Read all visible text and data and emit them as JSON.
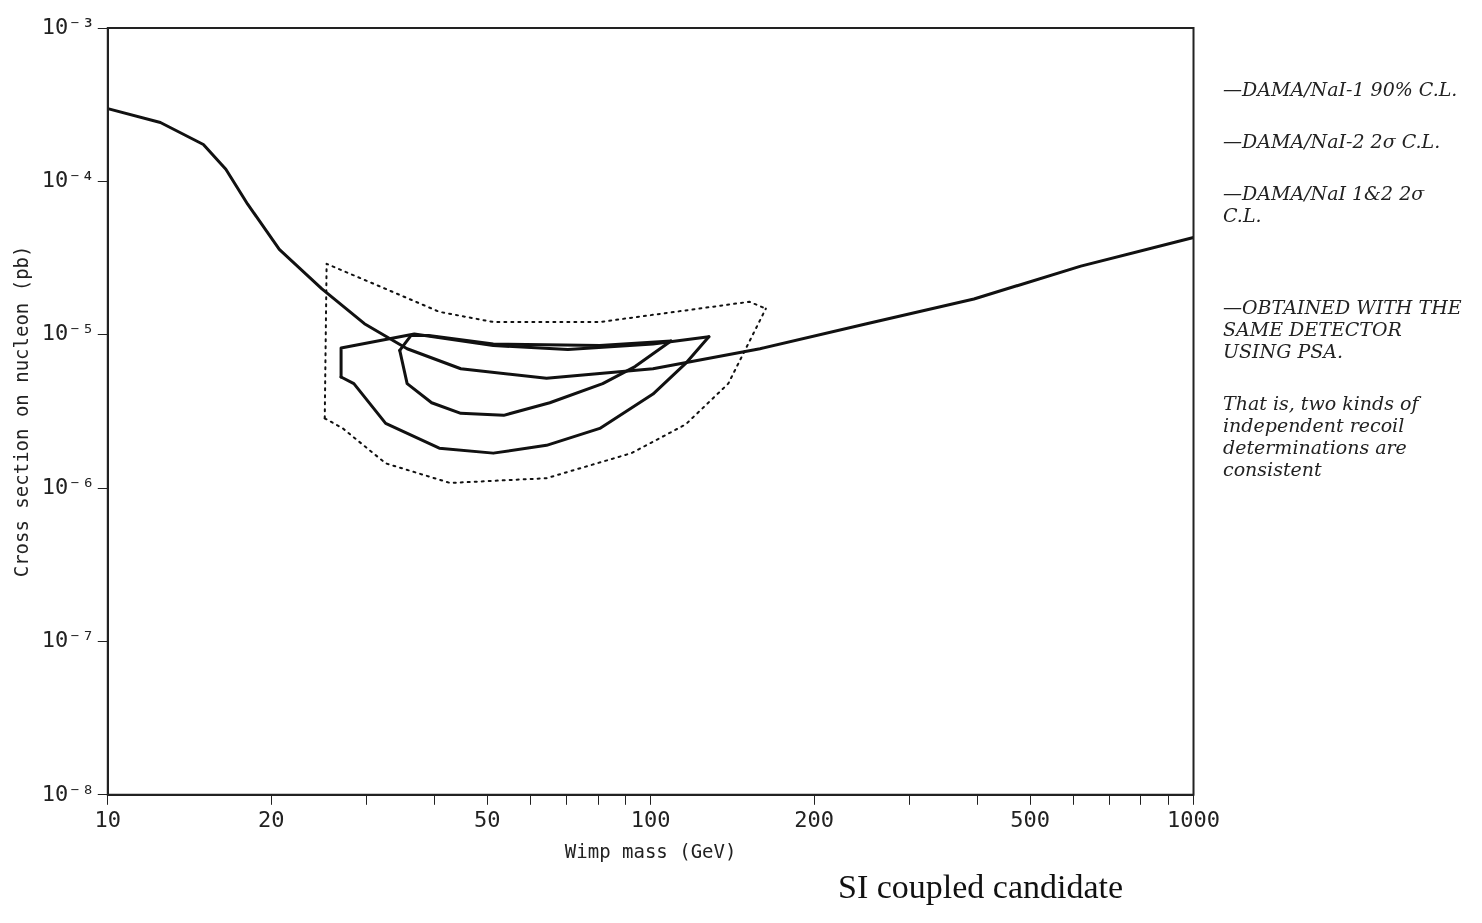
{
  "chart_data": {
    "type": "line",
    "xlabel": "Wimp mass (GeV)",
    "ylabel": "Cross section on nucleon (pb)",
    "log": "xy",
    "grid": false,
    "legend": false,
    "marker": "none",
    "xlim": [
      10,
      1000
    ],
    "ylim": [
      1e-08,
      0.001
    ],
    "xticks": [
      10,
      20,
      {
        "value": 30,
        "label": null
      },
      {
        "value": 40,
        "label": null
      },
      50,
      {
        "value": 60,
        "label": null
      },
      {
        "value": 70,
        "label": null
      },
      {
        "value": 80,
        "label": null
      },
      {
        "value": 90,
        "label": null
      },
      100,
      200,
      {
        "value": 300,
        "label": null
      },
      {
        "value": 400,
        "label": null
      },
      500,
      {
        "value": 600,
        "label": null
      },
      {
        "value": 700,
        "label": null
      },
      {
        "value": 800,
        "label": null
      },
      {
        "value": 900,
        "label": null
      },
      1000
    ],
    "yticks": [
      {
        "value": 1e-08,
        "label": "10⁻⁸"
      },
      {
        "value": 1e-07,
        "label": "10⁻⁷"
      },
      {
        "value": 1e-06,
        "label": "10⁻⁶"
      },
      {
        "value": 1e-05,
        "label": "10⁻⁵"
      },
      {
        "value": 0.0001,
        "label": "10⁻⁴"
      },
      {
        "value": 0.001,
        "label": "10⁻³"
      }
    ],
    "series": [
      {
        "color": "#111111",
        "line_style": "solid",
        "x": [
          10,
          12.5,
          15,
          16.5,
          18.1,
          20.7,
          24.8,
          29.7,
          35.6,
          44.7,
          64.3,
          101,
          159,
          250,
          394,
          620,
          1000
        ],
        "values": [
          0.000298,
          0.000242,
          0.000174,
          0.00012,
          7.1e-05,
          3.6e-05,
          1.99e-05,
          1.18e-05,
          8.1e-06,
          6e-06,
          5.2e-06,
          6e-06,
          8.1e-06,
          1.18e-05,
          1.71e-05,
          2.8e-05,
          4.3e-05
        ]
      },
      {
        "color": "#111111",
        "line_style": "dotted",
        "x": [
          25.1,
          25.3,
          32.5,
          40.8,
          51.3,
          80.6,
          111,
          152,
          163
        ],
        "values": [
          2.85e-06,
          2.9e-05,
          1.99e-05,
          1.41e-05,
          1.21e-05,
          1.21e-05,
          1.41e-05,
          1.64e-05,
          1.48e-05
        ]
      },
      {
        "color": "#111111",
        "line_style": "dotted",
        "x": [
          25.1,
          27.1,
          32.5,
          42.7,
          64.3,
          92.2,
          116,
          139,
          163
        ],
        "values": [
          2.85e-06,
          2.45e-06,
          1.45e-06,
          1.08e-06,
          1.16e-06,
          1.69e-06,
          2.6e-06,
          4.8e-06,
          1.48e-05
        ]
      },
      {
        "color": "#111111",
        "line_style": "solid",
        "x": [
          26.9,
          26.9,
          36.7,
          51.3,
          70.4,
          101,
          128
        ],
        "values": [
          5.3e-06,
          8.2e-06,
          1.01e-05,
          8.5e-06,
          8e-06,
          8.7e-06,
          9.7e-06
        ]
      },
      {
        "color": "#111111",
        "line_style": "solid",
        "x": [
          26.9,
          28.4,
          32.5,
          40.8,
          51.3,
          64.3,
          80.6,
          101,
          116,
          128
        ],
        "values": [
          5.3e-06,
          4.8e-06,
          2.64e-06,
          1.82e-06,
          1.69e-06,
          1.9e-06,
          2.45e-06,
          4.1e-06,
          6.5e-06,
          9.7e-06
        ]
      },
      {
        "color": "#111111",
        "line_style": "solid",
        "x": [
          34.5,
          36.2,
          39,
          51.3,
          80.6,
          109
        ],
        "values": [
          7.9e-06,
          9.9e-06,
          9.9e-06,
          8.7e-06,
          8.5e-06,
          9.1e-06
        ]
      },
      {
        "color": "#111111",
        "line_style": "solid",
        "x": [
          34.5,
          35.6,
          39.5,
          44.7,
          53.6,
          65.2,
          81.6,
          93.6,
          109
        ],
        "values": [
          7.9e-06,
          4.8e-06,
          3.6e-06,
          3.07e-06,
          2.98e-06,
          3.6e-06,
          4.8e-06,
          6.2e-06,
          9.1e-06
        ]
      }
    ],
    "annotations": [
      "—DAMA/NaI-1 90% C.L.",
      "—DAMA/NaI-2 2σ C.L.",
      "—DAMA/NaI 1&2 2σ C.L.",
      "—OBTAINED WITH THE SAME DETECTOR USING PSA.",
      "That is, two kinds of independent recoil determinations are consistent",
      "SI coupled candidate"
    ]
  }
}
